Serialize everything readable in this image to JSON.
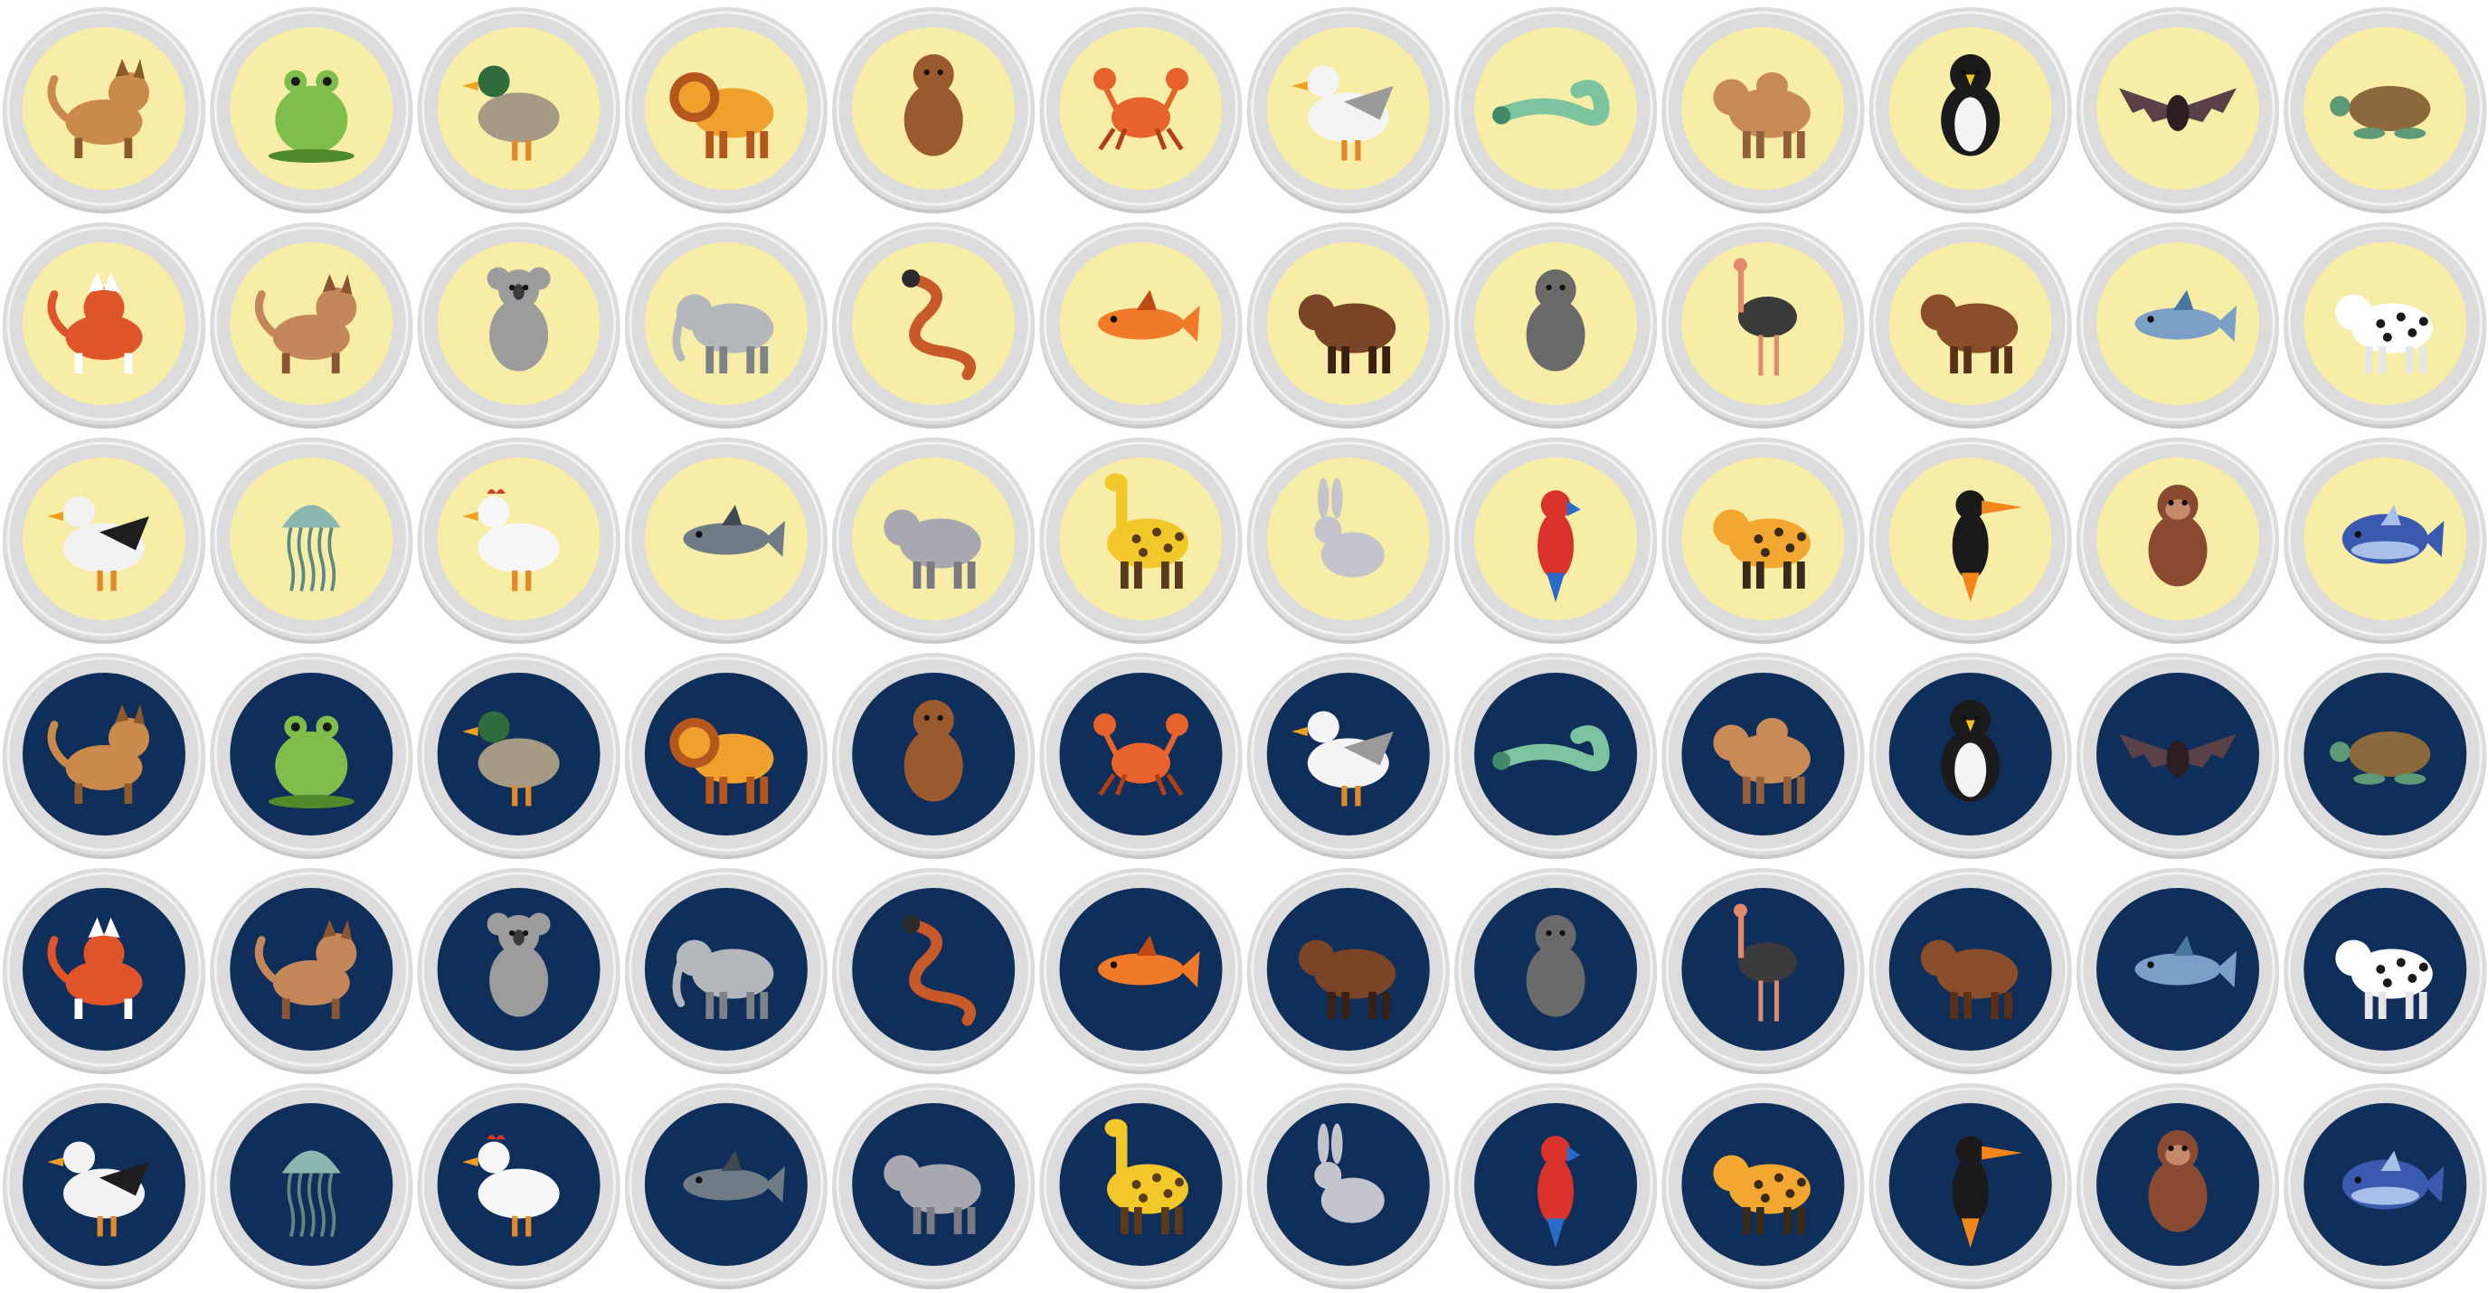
{
  "palette": {
    "light_disc": "#f7eda6",
    "dark_disc": "#0f2e5a",
    "rim": "#dcdcdc",
    "rim_shadow": "#c8c8c8",
    "rim_edge": "#f2f2f2"
  },
  "animals": [
    "cat",
    "frog",
    "duck",
    "lion",
    "bear",
    "crab",
    "seagull",
    "lizard",
    "camel",
    "penguin",
    "bat",
    "sea-turtle",
    "fox",
    "dog",
    "koala",
    "elephant",
    "snake",
    "fish",
    "horse",
    "gorilla",
    "ostrich",
    "bison",
    "dolphin",
    "cow",
    "stork",
    "jellyfish",
    "chicken",
    "shark",
    "hippo",
    "giraffe",
    "rabbit",
    "parrot",
    "leopard",
    "toucan",
    "monkey",
    "whale"
  ],
  "sets": [
    {
      "name": "light",
      "disc": "#f7eda6"
    },
    {
      "name": "dark",
      "disc": "#0f2e5a"
    }
  ],
  "colors": {
    "cat": {
      "body": "#c98a4b",
      "dark": "#8c5a2b"
    },
    "frog": {
      "body": "#7dbf4a",
      "dark": "#4f8a2a"
    },
    "duck": {
      "body": "#a59a84",
      "dark": "#2f6b3c"
    },
    "lion": {
      "body": "#f0a02c",
      "dark": "#b5561d"
    },
    "bear": {
      "body": "#9a5a2e",
      "dark": "#6b3a1a"
    },
    "crab": {
      "body": "#e8622c",
      "dark": "#b23d16"
    },
    "seagull": {
      "body": "#f4f4f4",
      "dark": "#9a9a9a"
    },
    "lizard": {
      "body": "#7cc4a0",
      "dark": "#3f8a6a"
    },
    "camel": {
      "body": "#c98b55",
      "dark": "#94603a"
    },
    "penguin": {
      "body": "#1b1b1b",
      "dark": "#f2c21c"
    },
    "bat": {
      "body": "#5a4148",
      "dark": "#2c1e22"
    },
    "sea-turtle": {
      "body": "#8a6a3c",
      "dark": "#5c9a78"
    },
    "fox": {
      "body": "#e0542a",
      "dark": "#ffffff"
    },
    "dog": {
      "body": "#c4875a",
      "dark": "#8a5532"
    },
    "koala": {
      "body": "#9c9c9c",
      "dark": "#3a3a3a"
    },
    "elephant": {
      "body": "#b4b8bd",
      "dark": "#7d8289"
    },
    "snake": {
      "body": "#c85a2a",
      "dark": "#2a2a2a"
    },
    "fish": {
      "body": "#f07a2a",
      "dark": "#c04a14"
    },
    "horse": {
      "body": "#7a4426",
      "dark": "#3a2010"
    },
    "gorilla": {
      "body": "#6a6a6a",
      "dark": "#3a3a3a"
    },
    "ostrich": {
      "body": "#3a3a3a",
      "dark": "#e08a6a"
    },
    "bison": {
      "body": "#8a4f2a",
      "dark": "#5a3018"
    },
    "dolphin": {
      "body": "#7aa0c8",
      "dark": "#4a76a2"
    },
    "cow": {
      "body": "#ffffff",
      "dark": "#1a1a1a"
    },
    "stork": {
      "body": "#f2f2f2",
      "dark": "#1e1e1e"
    },
    "jellyfish": {
      "body": "#8ab8b0",
      "dark": "#5a8a82"
    },
    "chicken": {
      "body": "#f7f7f7",
      "dark": "#d23a2a"
    },
    "shark": {
      "body": "#6f7c86",
      "dark": "#3f4a52"
    },
    "hippo": {
      "body": "#a8a8b0",
      "dark": "#7a7a84"
    },
    "giraffe": {
      "body": "#f2c72a",
      "dark": "#5a3a1a"
    },
    "rabbit": {
      "body": "#c4c4cc",
      "dark": "#8a8a94"
    },
    "parrot": {
      "body": "#d8322a",
      "dark": "#2a6ac8"
    },
    "leopard": {
      "body": "#f2a830",
      "dark": "#3a2a18"
    },
    "toucan": {
      "body": "#1a1a1a",
      "dark": "#f2861a"
    },
    "monkey": {
      "body": "#8a4a32",
      "dark": "#c48a6a"
    },
    "whale": {
      "body": "#3a5ab0",
      "dark": "#a8c0e8"
    }
  }
}
